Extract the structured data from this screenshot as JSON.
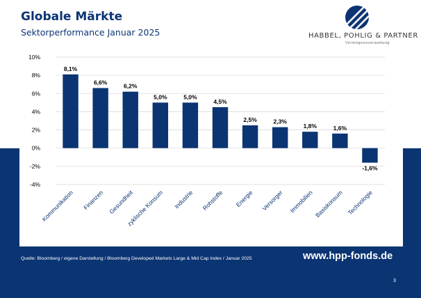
{
  "header": {
    "title": "Globale Märkte",
    "subtitle": "Sektorperformance Januar 2025"
  },
  "logo": {
    "name": "HABBEL, POHLIG & PARTNER",
    "tagline": "Vermögensverwaltung",
    "icon": "sail-logo-icon"
  },
  "chart_data": {
    "type": "bar",
    "categories": [
      "Kommunikation",
      "Finanzen",
      "Gesundheit",
      "zyklische Konsum",
      "Industrie",
      "Rohstoffe",
      "Energie",
      "Versorger",
      "Immobilien",
      "Basiskonsum",
      "Technologie"
    ],
    "values": [
      8.1,
      6.6,
      6.2,
      5.0,
      5.0,
      4.5,
      2.5,
      2.3,
      1.8,
      1.6,
      -1.6
    ],
    "data_labels": [
      "8,1%",
      "6,6%",
      "6,2%",
      "5,0%",
      "5,0%",
      "4,5%",
      "2,5%",
      "2,3%",
      "1,8%",
      "1,6%",
      "-1,6%"
    ],
    "y_ticks": [
      10,
      8,
      6,
      4,
      2,
      0,
      -2,
      -4
    ],
    "y_tick_labels": [
      "10%",
      "8%",
      "6%",
      "4%",
      "2%",
      "0%",
      "-2%",
      "-4%"
    ],
    "ylim": [
      -4,
      10
    ],
    "grid": true,
    "bar_color": "#0b3473"
  },
  "footer": {
    "source": "Quelle: Bloomberg / eigene Darstellung / Bloomberg Developed Markets Large & Mid Cap Index / Januar 2025",
    "website": "www.hpp-fonds.de",
    "page_number": "3"
  },
  "colors": {
    "brand": "#0b3473",
    "background": "#ffffff",
    "grid": "#d9d9d9"
  }
}
